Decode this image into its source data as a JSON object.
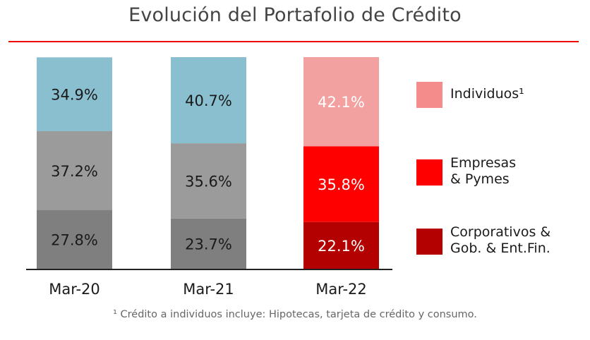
{
  "title": "Evolución del Portafolio de Crédito",
  "footnote": "¹ Crédito a individuos incluye: Hipotecas, tarjeta de crédito y consumo.",
  "legend": [
    {
      "label": "Individuos¹",
      "color": "#f48c8c"
    },
    {
      "label": "Empresas\n& Pymes",
      "color": "#ff0000"
    },
    {
      "label": "Corporativos &\nGob. & Ent.Fin.",
      "color": "#b30000"
    }
  ],
  "colors": {
    "accent_rule": "#ec0000",
    "axis": "#222222",
    "label_dark": "#1a1a1a",
    "label_light": "#ffffff"
  },
  "chart_data": {
    "type": "bar",
    "stacked": true,
    "normalized_percent": true,
    "categories": [
      "Mar-20",
      "Mar-21",
      "Mar-22"
    ],
    "series": [
      {
        "name": "Corporativos & Gob. & Ent.Fin.",
        "values": [
          27.8,
          23.7,
          22.1
        ],
        "labels": [
          "27.8%",
          "23.7%",
          "22.1%"
        ],
        "colors": [
          "#7f7f7f",
          "#7f7f7f",
          "#b30000"
        ]
      },
      {
        "name": "Empresas & Pymes",
        "values": [
          37.2,
          35.6,
          35.8
        ],
        "labels": [
          "37.2%",
          "35.6%",
          "35.8%"
        ],
        "colors": [
          "#9b9b9b",
          "#9b9b9b",
          "#ff0000"
        ]
      },
      {
        "name": "Individuos",
        "values": [
          34.9,
          40.7,
          42.1
        ],
        "labels": [
          "34.9%",
          "40.7%",
          "42.1%"
        ],
        "colors": [
          "#89bfcf",
          "#89bfcf",
          "#f2a0a0"
        ]
      }
    ],
    "label_colors": [
      [
        "#1a1a1a",
        "#1a1a1a",
        "#ffffff"
      ],
      [
        "#1a1a1a",
        "#1a1a1a",
        "#ffffff"
      ],
      [
        "#1a1a1a",
        "#1a1a1a",
        "#ffffff"
      ]
    ],
    "ylim": [
      0,
      100
    ],
    "grid": false,
    "legend_position": "right"
  }
}
